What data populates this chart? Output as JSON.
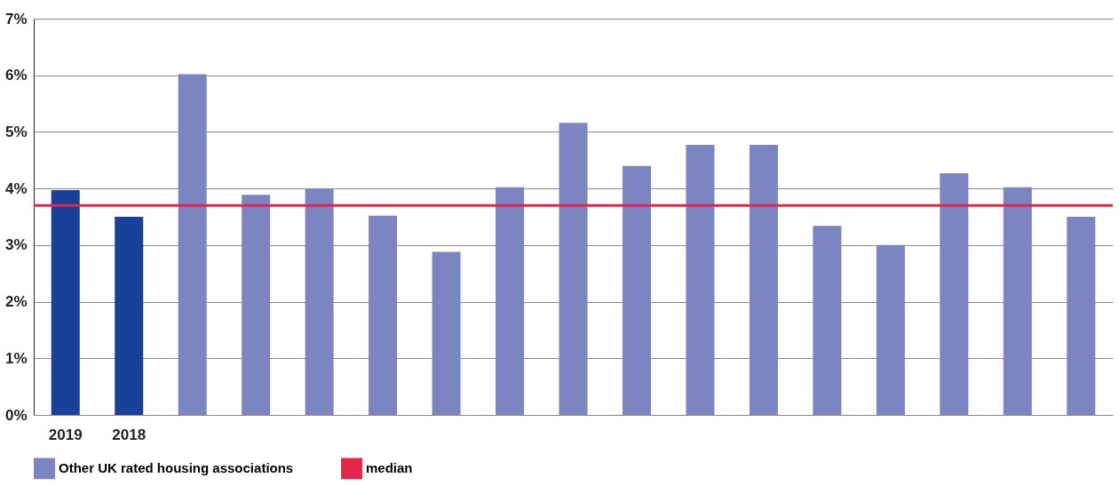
{
  "chart_data": {
    "type": "bar",
    "categories": [
      "2019",
      "2018",
      null,
      null,
      null,
      null,
      null,
      null,
      null,
      null,
      null,
      null,
      null,
      null,
      null,
      null,
      null
    ],
    "series": [
      {
        "color": "#1a4199",
        "values": [
          3.97,
          3.5,
          null,
          null,
          null,
          null,
          null,
          null,
          null,
          null,
          null,
          null,
          null,
          null,
          null,
          null,
          null
        ]
      },
      {
        "name": "Other UK rated housing associations",
        "color": "#7a85c1",
        "values": [
          null,
          null,
          6.02,
          3.89,
          4.0,
          3.52,
          2.88,
          4.02,
          5.16,
          4.4,
          4.77,
          4.77,
          3.34,
          3.0,
          4.27,
          4.02,
          3.5
        ]
      }
    ],
    "ylim": [
      0,
      7
    ],
    "yticks": [
      {
        "value": 0,
        "label": "0%"
      },
      {
        "value": 1,
        "label": "1%"
      },
      {
        "value": 2,
        "label": "2%"
      },
      {
        "value": 3,
        "label": "3%"
      },
      {
        "value": 4,
        "label": "4%"
      },
      {
        "value": 5,
        "label": "5%"
      },
      {
        "value": 6,
        "label": "6%"
      },
      {
        "value": 7,
        "label": "7%"
      }
    ],
    "ref_lines": [
      {
        "axis": "y",
        "value": 3.7,
        "label": "median",
        "color": "#e4264a"
      }
    ],
    "grid": "y",
    "legend": "bottom"
  }
}
